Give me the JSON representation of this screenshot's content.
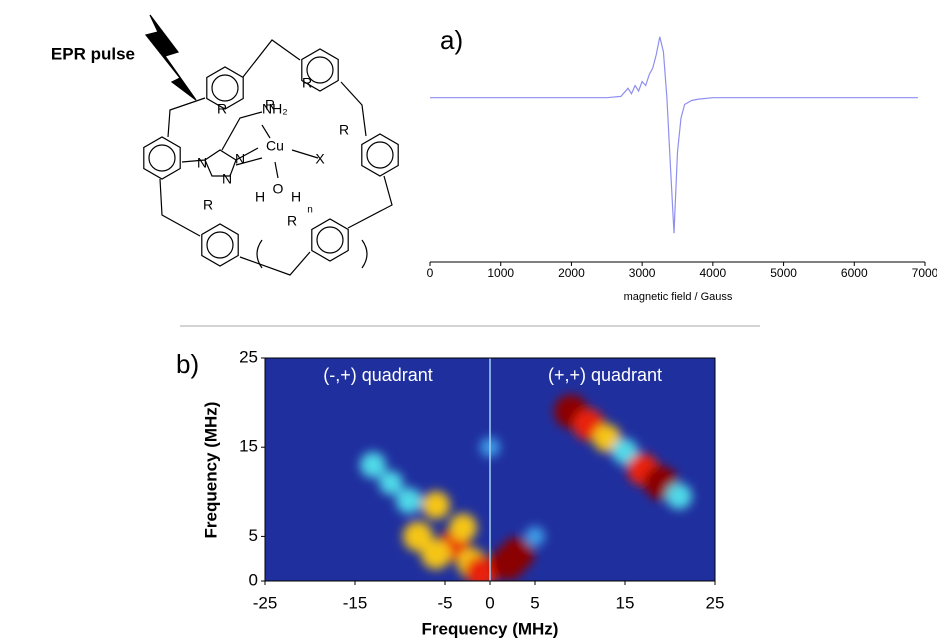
{
  "structure": {
    "labels": [
      "EPR pulse",
      "R",
      "R",
      "R",
      "R",
      "R",
      "R",
      "NH₂",
      "Cu",
      "X",
      "N",
      "N",
      "N",
      "O",
      "H",
      "H",
      "n"
    ]
  },
  "chart_data": [
    {
      "type": "line",
      "panel_label": "a)",
      "xlabel": "magnetic field / Gauss",
      "x": [
        0,
        500,
        1000,
        1500,
        2000,
        2500,
        2700,
        2800,
        2850,
        2900,
        2950,
        3000,
        3050,
        3100,
        3150,
        3200,
        3250,
        3300,
        3350,
        3400,
        3450,
        3500,
        3550,
        3600,
        3700,
        3800,
        4000,
        5000,
        6000,
        6900
      ],
      "series": [
        {
          "color": "#8f8ff0",
          "values": [
            0,
            0,
            0,
            0,
            0,
            0,
            0.01,
            0.07,
            0.03,
            0.09,
            0.05,
            0.12,
            0.09,
            0.17,
            0.22,
            0.32,
            0.45,
            0.34,
            0.0,
            -0.5,
            -1.0,
            -0.4,
            -0.15,
            -0.05,
            -0.02,
            -0.01,
            0,
            0,
            0,
            0
          ]
        }
      ],
      "xlim": [
        0,
        7000
      ],
      "xticks": [
        0,
        1000,
        2000,
        3000,
        4000,
        5000,
        6000,
        7000
      ],
      "ylim": [
        -1.05,
        0.5
      ]
    },
    {
      "type": "contour",
      "panel_label": "b)",
      "xlabel": "Frequency (MHz)",
      "ylabel": "Frequency (MHz)",
      "annotations": [
        "(-,+) quadrant",
        "(+,+) quadrant"
      ],
      "x": [
        9,
        11,
        13,
        15,
        17,
        19,
        21,
        -13,
        -11,
        -9,
        -8,
        -6,
        -4,
        -6,
        -3,
        -2,
        -1,
        2,
        3,
        5,
        0
      ],
      "y": [
        19,
        17.5,
        16,
        14.5,
        12.5,
        11,
        9.5,
        13,
        11,
        9,
        5,
        8.5,
        4,
        3,
        6,
        2,
        1,
        2,
        3,
        5,
        15
      ],
      "values": [
        1,
        0.9,
        0.7,
        0.6,
        0.9,
        1,
        0.6,
        0.6,
        0.5,
        0.6,
        0.8,
        0.7,
        0.9,
        0.8,
        0.7,
        0.8,
        0.9,
        1,
        1,
        0.3,
        0.3
      ],
      "xlim": [
        -25,
        25
      ],
      "xticks": [
        -25,
        -15,
        -5,
        0,
        5,
        15,
        25
      ],
      "ylim": [
        0,
        25
      ],
      "yticks": [
        0,
        5,
        15,
        25
      ]
    }
  ]
}
